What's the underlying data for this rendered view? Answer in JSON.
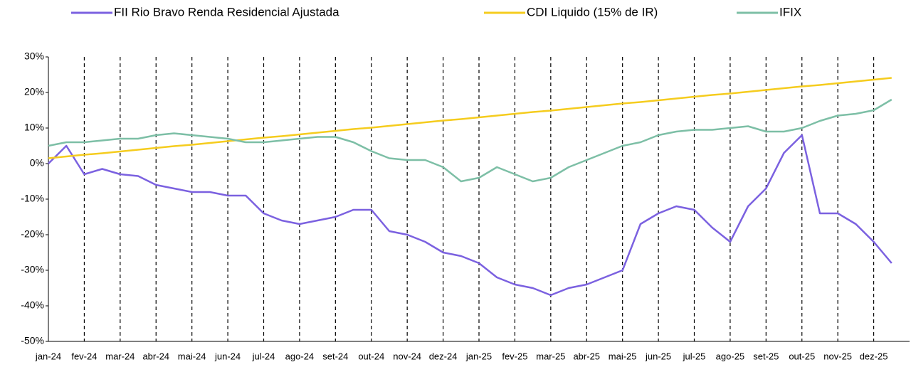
{
  "chart_data": {
    "type": "line",
    "x": [
      "jan-24",
      null,
      "fev-24",
      null,
      "mar-24",
      null,
      "abr-24",
      null,
      "mai-24",
      null,
      "jun-24",
      null,
      "jul-24",
      null,
      "ago-24",
      null,
      "set-24",
      null,
      "out-24",
      null,
      "nov-24",
      null,
      "dez-24",
      null,
      "jan-25",
      null,
      "fev-25",
      null,
      "mar-25",
      null,
      "abr-25",
      null,
      "mai-25",
      null,
      "jun-25",
      null,
      "jul-25",
      null,
      "ago-25",
      null,
      "set-25",
      null,
      "out-25",
      null,
      "nov-25",
      null,
      "dez-25",
      null
    ],
    "series": [
      {
        "name": "FII Rio Bravo Renda Residencial Ajustada",
        "color": "#7b61e0",
        "values": [
          0,
          5,
          -3,
          -1.5,
          -3,
          -3.5,
          -6,
          -7,
          -8,
          -8,
          -9,
          -9,
          -14,
          -16,
          -17,
          -16,
          -15,
          -13,
          -13,
          -19,
          -20,
          -22,
          -25,
          -26,
          -28,
          -32,
          -34,
          -35,
          -37,
          -35,
          -34,
          -32,
          -30,
          -17,
          -14,
          -12,
          -13,
          -18,
          -22,
          -12,
          -7,
          3,
          8,
          -14,
          -14,
          -17,
          -22,
          -28
        ]
      },
      {
        "name": "CDI Liquido (15% de IR)",
        "color": "#f5cc1e",
        "values": [
          1.5,
          2,
          2.5,
          2.9,
          3.4,
          3.9,
          4.4,
          4.9,
          5.3,
          5.8,
          6.3,
          6.8,
          7.3,
          7.7,
          8.2,
          8.7,
          9.2,
          9.7,
          10.1,
          10.6,
          11.1,
          11.6,
          12.1,
          12.5,
          13,
          13.5,
          14,
          14.5,
          14.9,
          15.4,
          15.9,
          16.4,
          16.9,
          17.3,
          17.8,
          18.3,
          18.8,
          19.3,
          19.7,
          20.2,
          20.7,
          21.2,
          21.7,
          22.1,
          22.6,
          23.1,
          23.6,
          24.1
        ]
      },
      {
        "name": "IFIX",
        "color": "#7dbfa6",
        "values": [
          5,
          6,
          6,
          6.5,
          7,
          7,
          8,
          8.5,
          8,
          7.5,
          7,
          6,
          6,
          6.5,
          7,
          7.5,
          7.5,
          6,
          3.5,
          1.5,
          1,
          1,
          -1,
          -5,
          -4,
          -1,
          -3,
          -5,
          -4,
          -1,
          1,
          3,
          5,
          6,
          8,
          9,
          9.5,
          9.5,
          10,
          10.5,
          9,
          9,
          10,
          12,
          13.5,
          14,
          15,
          18
        ]
      }
    ],
    "ylim": [
      -50,
      30
    ],
    "yticks": [
      {
        "value": -50,
        "label": "-50%"
      },
      {
        "value": -40,
        "label": "-40%"
      },
      {
        "value": -30,
        "label": "-30%"
      },
      {
        "value": -20,
        "label": "-20%"
      },
      {
        "value": -10,
        "label": "-10%"
      },
      {
        "value": 0,
        "label": "0%"
      },
      {
        "value": 10,
        "label": "10%"
      },
      {
        "value": 20,
        "label": "20%"
      },
      {
        "value": 30,
        "label": "30%"
      }
    ],
    "legend": "top"
  }
}
